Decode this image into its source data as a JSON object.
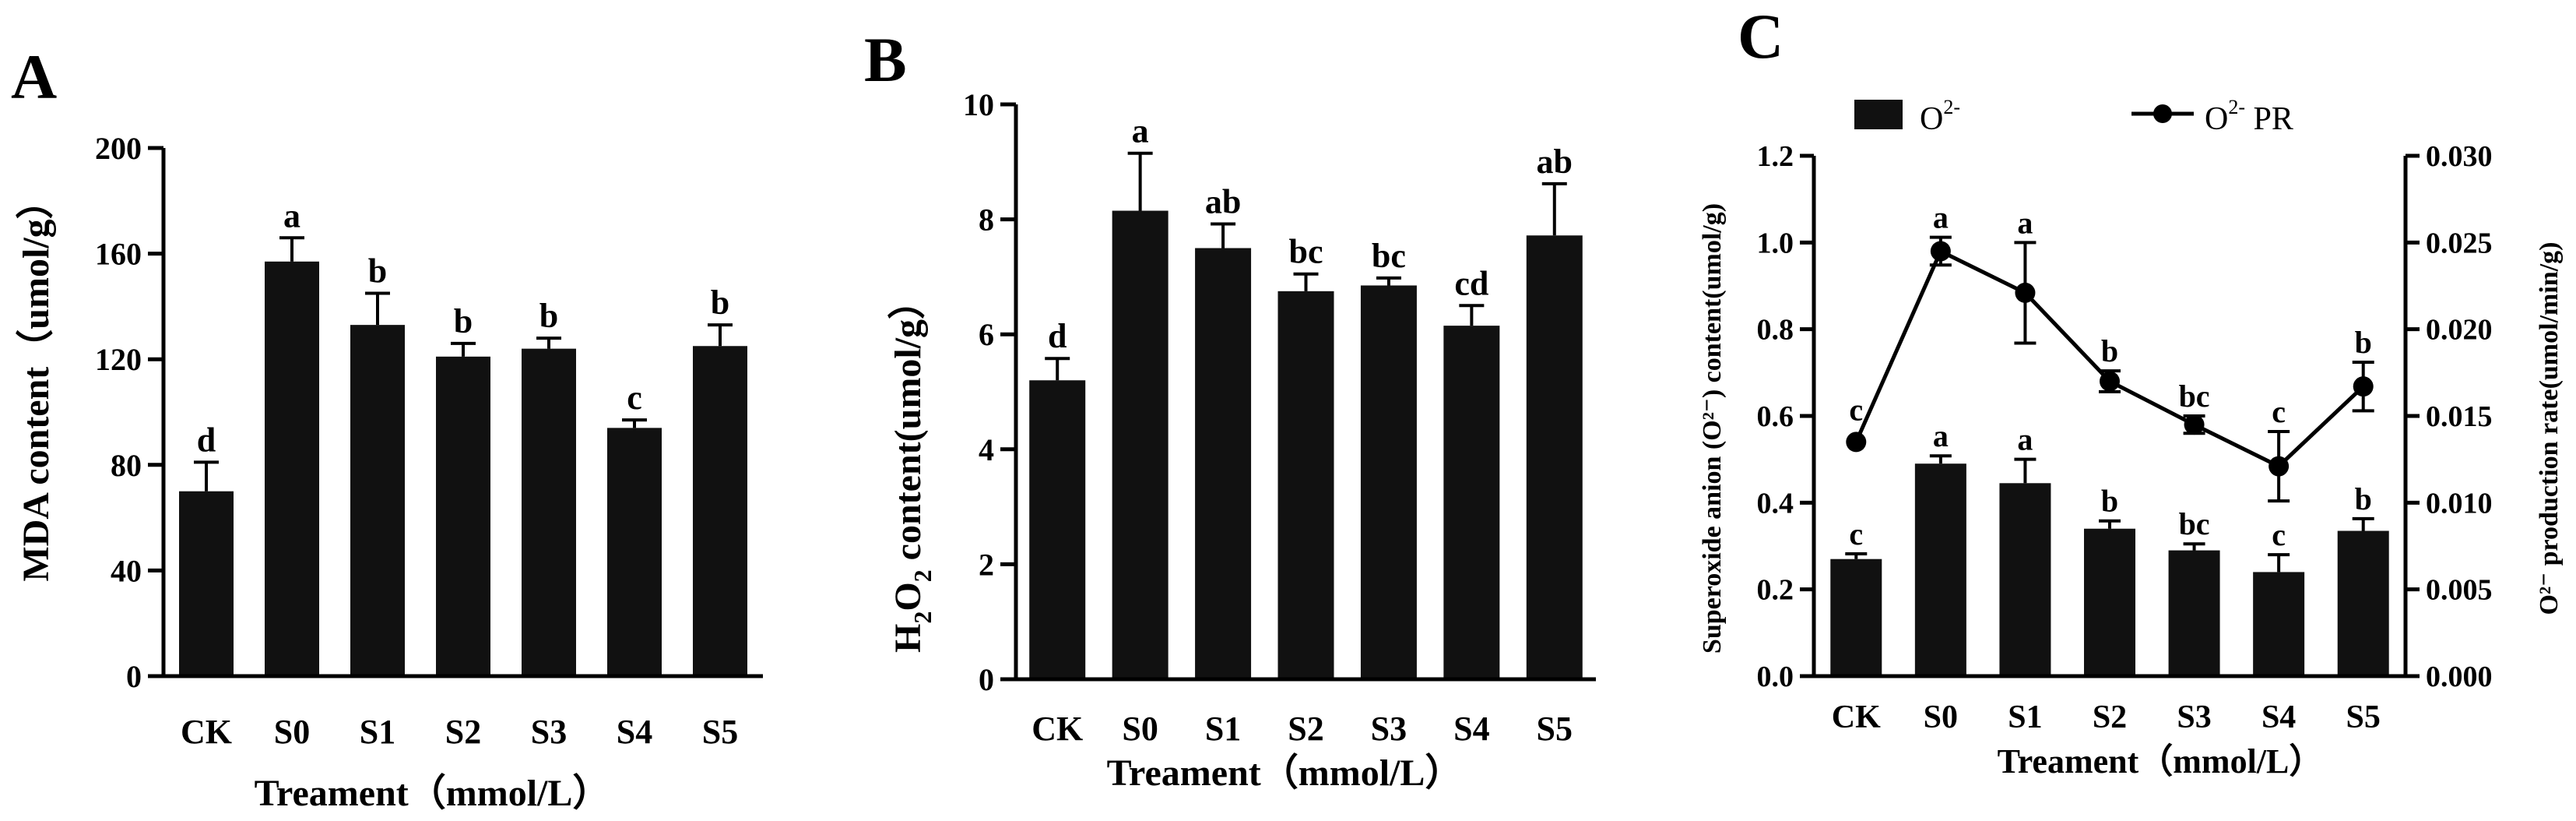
{
  "chart_data": [
    {
      "panel": "A",
      "type": "bar",
      "categories": [
        "CK",
        "S0",
        "S1",
        "S2",
        "S3",
        "S4",
        "S5"
      ],
      "values": [
        70,
        157,
        133,
        121,
        124,
        94,
        125
      ],
      "errors": [
        11,
        9,
        12,
        5,
        4,
        3,
        8
      ],
      "labels": [
        "d",
        "a",
        "b",
        "b",
        "b",
        "c",
        "b"
      ],
      "ylabel": "MDA content（umol/g）",
      "xlabel": "Treament（mmol/L）",
      "ylim": [
        0,
        200
      ],
      "yticks": [
        "0",
        "40",
        "80",
        "120",
        "160",
        "200"
      ]
    },
    {
      "panel": "B",
      "type": "bar",
      "categories": [
        "CK",
        "S0",
        "S1",
        "S2",
        "S3",
        "S4",
        "S5"
      ],
      "values": [
        5.2,
        8.15,
        7.5,
        6.75,
        6.85,
        6.15,
        7.72
      ],
      "errors": [
        0.38,
        1.0,
        0.42,
        0.3,
        0.13,
        0.35,
        0.9
      ],
      "labels": [
        "d",
        "a",
        "ab",
        "bc",
        "bc",
        "cd",
        "ab"
      ],
      "ylabel_main": "H",
      "ylabel_sub1": "2",
      "ylabel_mid": "O",
      "ylabel_sub2": "2",
      "ylabel_rest": " content(umol/g）",
      "xlabel": "Treament（mmol/L）",
      "ylim": [
        0,
        10
      ],
      "yticks": [
        "0",
        "2",
        "4",
        "6",
        "8",
        "10"
      ]
    },
    {
      "panel": "C",
      "type": "bar+line",
      "categories": [
        "CK",
        "S0",
        "S1",
        "S2",
        "S3",
        "S4",
        "S5"
      ],
      "bar_series": {
        "legend_base": "O",
        "legend_sup": "2-",
        "values": [
          0.27,
          0.49,
          0.445,
          0.34,
          0.29,
          0.24,
          0.335
        ],
        "errors": [
          0.012,
          0.018,
          0.055,
          0.018,
          0.015,
          0.04,
          0.028
        ],
        "labels": [
          "c",
          "a",
          "a",
          "b",
          "bc",
          "c",
          "b"
        ]
      },
      "line_series": {
        "legend_base": "O",
        "legend_sup": "2-",
        "legend_rest": " PR",
        "values": [
          0.0135,
          0.0245,
          0.0221,
          0.017,
          0.0145,
          0.0121,
          0.0167
        ],
        "errors": [
          0.0,
          0.0008,
          0.0029,
          0.0006,
          0.0005,
          0.002,
          0.0014
        ],
        "labels": [
          "c",
          "a",
          "a",
          "b",
          "bc",
          "c",
          "b"
        ]
      },
      "ylabel_left": "Superoxide anion (O²⁻) content(umol/g)",
      "ylabel_right": "O²⁻ production rate(umol/min/g)",
      "xlabel": "Treament（mmol/L）",
      "ylim_left": [
        0,
        1.2
      ],
      "ylim_right": [
        0,
        0.03
      ],
      "yticks_left": [
        "0.0",
        "0.2",
        "0.4",
        "0.6",
        "0.8",
        "1.0",
        "1.2"
      ],
      "yticks_right": [
        "0.000",
        "0.005",
        "0.010",
        "0.015",
        "0.020",
        "0.025",
        "0.030"
      ]
    }
  ]
}
